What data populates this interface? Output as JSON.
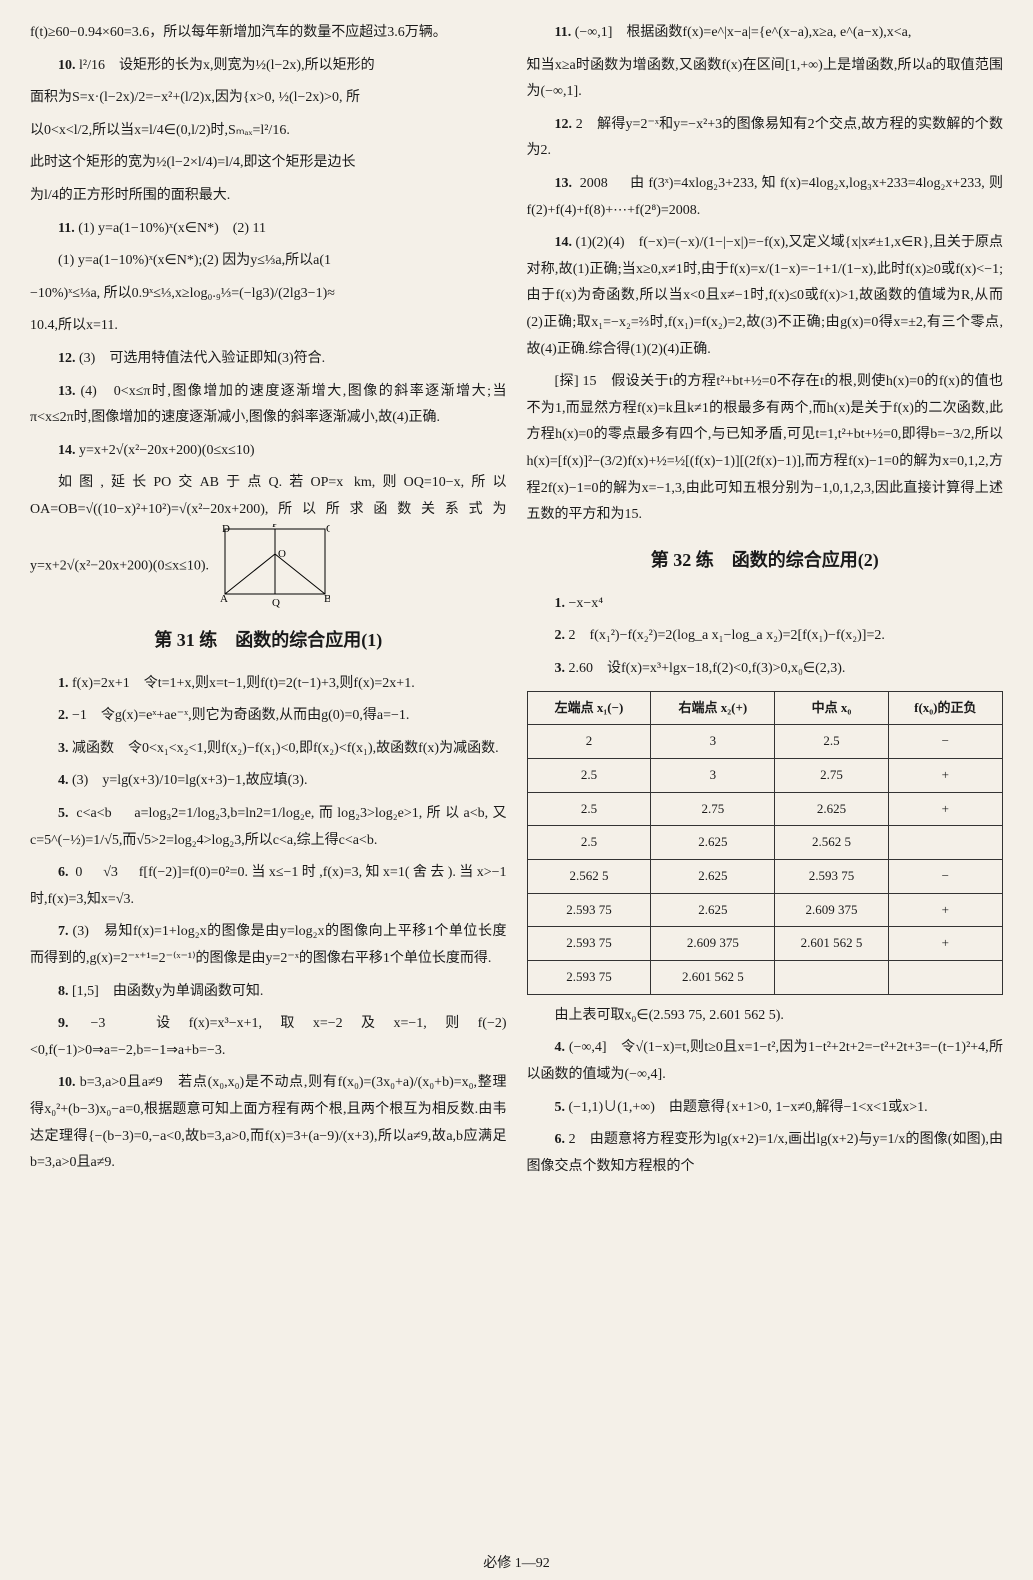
{
  "leftCol": {
    "p1": "f(t)≥60−0.94×60=3.6，所以每年新增加汽车的数量不应超过3.6万辆。",
    "p2_num": "10.",
    "p2_ans": "l²/16",
    "p2_text": "设矩形的长为x,则宽为½(l−2x),所以矩形的",
    "p3": "面积为S=x·(l−2x)/2=−x²+(l/2)x,因为{x>0, ½(l−2x)>0,  所",
    "p4": "以0<x<l/2,所以当x=l/4∈(0,l/2)时,Sₘₐₓ=l²/16.",
    "p5": "此时这个矩形的宽为½(l−2×l/4)=l/4,即这个矩形是边长",
    "p6": "为l/4的正方形时所围的面积最大.",
    "p7_num": "11.",
    "p7": "(1) y=a(1−10%)ˣ(x∈N*)　(2) 11",
    "p8": "(1) y=a(1−10%)ˣ(x∈N*);(2) 因为y≤⅓a,所以a(1",
    "p9": "−10%)ˣ≤⅓a, 所以0.9ˣ≤⅓,x≥log₀.₉⅓=(−lg3)/(2lg3−1)≈",
    "p10": "10.4,所以x=11.",
    "p11_num": "12.",
    "p11": "(3)　可选用特值法代入验证即知(3)符合.",
    "p12_num": "13.",
    "p12": "(4)　0<x≤π时,图像增加的速度逐渐增大,图像的斜率逐渐增大;当π<x≤2π时,图像增加的速度逐渐减小,图像的斜率逐渐减小,故(4)正确.",
    "p13_num": "14.",
    "p13": "y=x+2√(x²−20x+200)(0≤x≤10)",
    "p14": "如图,延长PO交AB于点Q.若OP=x km,则OQ=10−x,所以OA=OB=√((10−x)²+10²)=√(x²−20x+200),所以所求函数关系式为 y=x+2√(x²−20x+200)(0≤x≤10).",
    "section31": "第 31 练　函数的综合应用(1)",
    "q1_num": "1.",
    "q1": "f(x)=2x+1　令t=1+x,则x=t−1,则f(t)=2(t−1)+3,则f(x)=2x+1.",
    "q2_num": "2.",
    "q2": "−1　令g(x)=eˣ+ae⁻ˣ,则它为奇函数,从而由g(0)=0,得a=−1.",
    "q3_num": "3.",
    "q3": "减函数　令0<x₁<x₂<1,则f(x₂)−f(x₁)<0,即f(x₂)<f(x₁),故函数f(x)为减函数.",
    "q4_num": "4.",
    "q4": "(3)　y=lg(x+3)/10=lg(x+3)−1,故应填(3).",
    "q5_num": "5.",
    "q5": "c<a<b　a=log₃2=1/log₂3,b=ln2=1/log₂e,而log₂3>log₂e>1,所以a<b,又c=5^(−½)=1/√5,而√5>2=log₂4>log₂3,所以c<a,综上得c<a<b.",
    "q6_num": "6.",
    "q6": "0　√3　f[f(−2)]=f(0)=0²=0.当x≤−1时,f(x)=3,知x=1(舍去).当x>−1时,f(x)=3,知x=√3.",
    "q7_num": "7.",
    "q7": "(3)　易知f(x)=1+log₂x的图像是由y=log₂x的图像向上平移1个单位长度而得到的,g(x)=2⁻ˣ⁺¹=2⁻⁽ˣ⁻¹⁾的图像是由y=2⁻ˣ的图像右平移1个单位长度而得.",
    "q8_num": "8.",
    "q8": "[1,5]　由函数y为单调函数可知.",
    "q9_num": "9.",
    "q9": "−3　设f(x)=x³−x+1,取x=−2及x=−1,则f(−2)<0,f(−1)>0⇒a=−2,b=−1⇒a+b=−3.",
    "q10_num": "10.",
    "q10": "b=3,a>0且a≠9　若点(x₀,x₀)是不动点,则有f(x₀)=(3x₀+a)/(x₀+b)=x₀,整理得x₀²+(b−3)x₀−a=0,根据题意可知上面方程有两个根,且两个根互为相反数.由韦达定理得{−(b−3)=0,−a<0,故b=3,a>0,而f(x)=3+(a−9)/(x+3),所以a≠9,故a,b应满足b=3,a>0且a≠9."
  },
  "rightCol": {
    "p1_num": "11.",
    "p1": "(−∞,1]　根据函数f(x)=e^|x−a|={e^(x−a),x≥a, e^(a−x),x<a,",
    "p2": "知当x≥a时函数为增函数,又函数f(x)在区间[1,+∞)上是增函数,所以a的取值范围为(−∞,1].",
    "p3_num": "12.",
    "p3": "2　解得y=2⁻ˣ和y=−x²+3的图像易知有2个交点,故方程的实数解的个数为2.",
    "p4_num": "13.",
    "p4": "2008　由f(3ˣ)=4xlog₂3+233,知f(x)=4log₂x,log₃x+233=4log₂x+233,则f(2)+f(4)+f(8)+⋯+f(2⁸)=2008.",
    "p5_num": "14.",
    "p5": "(1)(2)(4)　f(−x)=(−x)/(1−|−x|)=−f(x),又定义域{x|x≠±1,x∈R},且关于原点对称,故(1)正确;当x≥0,x≠1时,由于f(x)=x/(1−x)=−1+1/(1−x),此时f(x)≥0或f(x)<−1;由于f(x)为奇函数,所以当x<0且x≠−1时,f(x)≤0或f(x)>1,故函数的值域为R,从而(2)正确;取x₁=−x₂=⅔时,f(x₁)=f(x₂)=2,故(3)不正确;由g(x)=0得x=±2,有三个零点,故(4)正确.综合得(1)(2)(4)正确.",
    "p6": "[探] 15　假设关于t的方程t²+bt+½=0不存在t的根,则使h(x)=0的f(x)的值也不为1,而显然方程f(x)=k且k≠1的根最多有两个,而h(x)是关于f(x)的二次函数,此方程h(x)=0的零点最多有四个,与已知矛盾,可见t=1,t²+bt+½=0,即得b=−3/2,所以h(x)=[f(x)]²−(3/2)f(x)+½=½[(f(x)−1)][(2f(x)−1)],而方程f(x)−1=0的解为x=0,1,2,方程2f(x)−1=0的解为x=−1,3,由此可知五根分别为−1,0,1,2,3,因此直接计算得上述五数的平方和为15.",
    "section32": "第 32 练　函数的综合应用(2)",
    "r1_num": "1.",
    "r1": "−x−x⁴",
    "r2_num": "2.",
    "r2": "2　f(x₁²)−f(x₂²)=2(log_a x₁−log_a x₂)=2[f(x₁)−f(x₂)]=2.",
    "r3_num": "3.",
    "r3": "2.60　设f(x)=x³+lgx−18,f(2)<0,f(3)>0,x₀∈(2,3).",
    "table_headers": [
      "左端点 x₁(−)",
      "右端点 x₂(+)",
      "中点 x₀",
      "f(x₀)的正负"
    ],
    "table_rows": [
      [
        "2",
        "3",
        "2.5",
        "−"
      ],
      [
        "2.5",
        "3",
        "2.75",
        "+"
      ],
      [
        "2.5",
        "2.75",
        "2.625",
        "+"
      ],
      [
        "2.5",
        "2.625",
        "2.562 5",
        ""
      ],
      [
        "2.562 5",
        "2.625",
        "2.593 75",
        "−"
      ],
      [
        "2.593 75",
        "2.625",
        "2.609 375",
        "+"
      ],
      [
        "2.593 75",
        "2.609 375",
        "2.601 562 5",
        "+"
      ],
      [
        "2.593 75",
        "2.601 562 5",
        "",
        ""
      ]
    ],
    "r3b": "由上表可取x₀∈(2.593 75, 2.601 562 5).",
    "r4_num": "4.",
    "r4": "(−∞,4]　令√(1−x)=t,则t≥0且x=1−t²,因为1−t²+2t+2=−t²+2t+3=−(t−1)²+4,所以函数的值域为(−∞,4].",
    "r5_num": "5.",
    "r5": "(−1,1)∪(1,+∞)　由题意得{x+1>0, 1−x≠0,解得−1<x<1或x>1.",
    "r6_num": "6.",
    "r6": "2　由题意将方程变形为lg(x+2)=1/x,画出lg(x+2)与y=1/x的图像(如图),由图像交点个数知方程根的个"
  },
  "footer": "必修 1—92",
  "diagram": {
    "labels": {
      "D": "D",
      "P": "P",
      "C": "C",
      "O": "O",
      "A": "A",
      "Q": "Q",
      "B": "B"
    }
  }
}
